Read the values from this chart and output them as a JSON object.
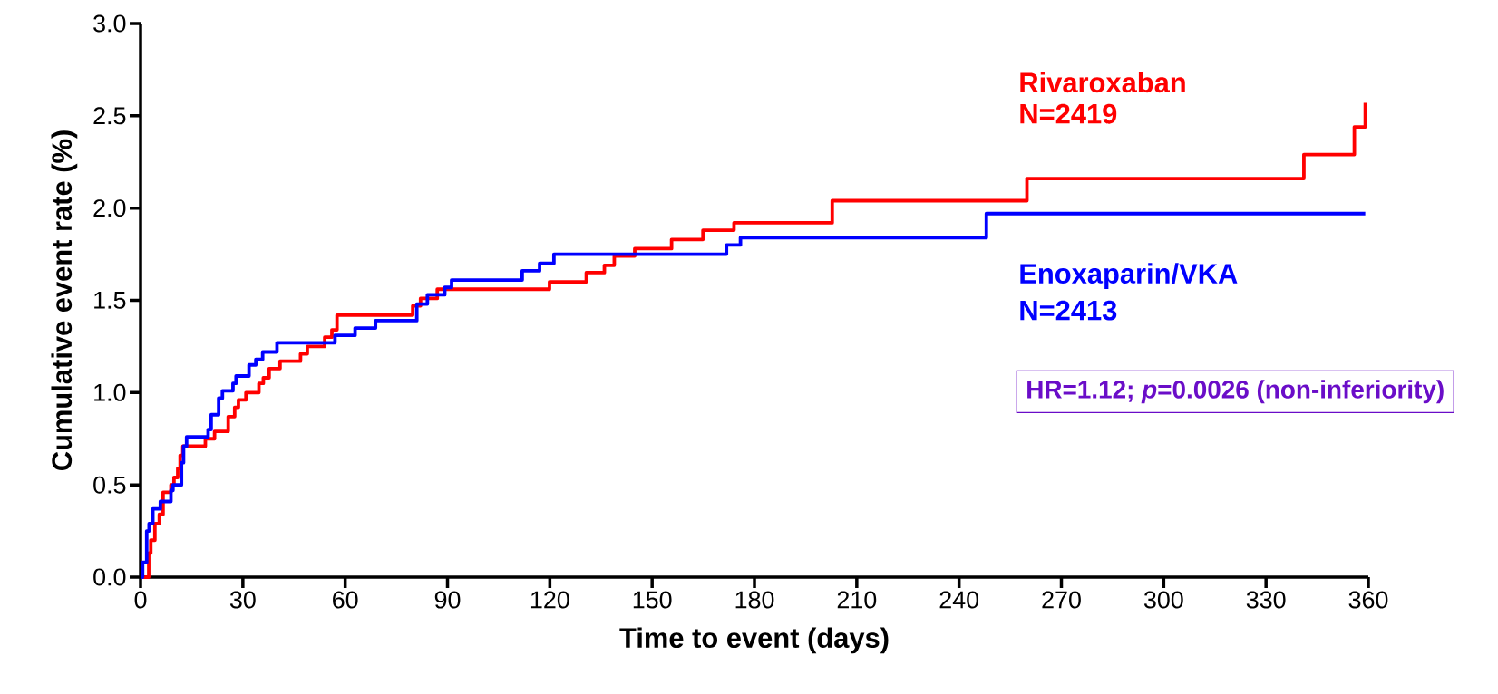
{
  "chart_data": {
    "type": "step",
    "xlabel": "Time to event (days)",
    "ylabel": "Cumulative event rate (%)",
    "xlim": [
      0,
      360
    ],
    "ylim": [
      0,
      3
    ],
    "xticks": [
      0,
      30,
      60,
      90,
      120,
      150,
      180,
      210,
      240,
      270,
      300,
      330,
      360
    ],
    "yticks": [
      {
        "value": 0,
        "label": "0.0"
      },
      0.5,
      {
        "value": 1,
        "label": "1.0"
      },
      1.5,
      {
        "value": 2,
        "label": "2.0"
      },
      2.5,
      {
        "value": 3,
        "label": "3.0"
      }
    ],
    "grid": false,
    "marker": "none",
    "series": [
      {
        "name": "Rivaroxaban",
        "color": "#ff0000",
        "x": [
          0,
          2.4,
          3.0,
          4.2,
          5.5,
          6.6,
          8.9,
          9.8,
          10.9,
          11.6,
          12.4,
          19.0,
          21.7,
          25.7,
          27.6,
          28.7,
          30.9,
          34.7,
          36.0,
          37.7,
          40.9,
          46.9,
          48.9,
          54.0,
          56.1,
          57.6,
          79.8,
          82.1,
          87.0,
          119.9,
          130.7,
          136.0,
          138.9,
          144.9,
          155.7,
          164.9,
          174.0,
          202.8,
          259.9,
          341.1,
          355.9,
          359.1
        ],
        "values": [
          0,
          0.13,
          0.2,
          0.29,
          0.34,
          0.46,
          0.5,
          0.54,
          0.59,
          0.66,
          0.71,
          0.75,
          0.79,
          0.87,
          0.92,
          0.96,
          1.0,
          1.05,
          1.08,
          1.13,
          1.17,
          1.21,
          1.25,
          1.3,
          1.34,
          1.42,
          1.47,
          1.51,
          1.56,
          1.6,
          1.65,
          1.69,
          1.74,
          1.78,
          1.83,
          1.88,
          1.92,
          2.04,
          2.16,
          2.29,
          2.44,
          2.57
        ]
      },
      {
        "name": "Enoxaparin/VKA",
        "color": "#0000ff",
        "x": [
          0,
          0.6,
          1.8,
          2.5,
          3.6,
          5.8,
          8.9,
          9.5,
          12.0,
          12.6,
          13.5,
          19.8,
          20.7,
          22.9,
          24.0,
          27.1,
          28.0,
          31.8,
          33.8,
          35.8,
          40.0,
          57.0,
          62.9,
          68.9,
          81.0,
          84.1,
          89.2,
          91.2,
          111.9,
          117.0,
          121.2,
          171.8,
          175.9,
          248.0,
          359.1
        ],
        "values": [
          0,
          0.08,
          0.25,
          0.29,
          0.37,
          0.41,
          0.47,
          0.5,
          0.62,
          0.71,
          0.76,
          0.8,
          0.88,
          0.97,
          1.01,
          1.05,
          1.09,
          1.15,
          1.18,
          1.22,
          1.27,
          1.31,
          1.35,
          1.39,
          1.48,
          1.53,
          1.57,
          1.61,
          1.66,
          1.7,
          1.75,
          1.8,
          1.84,
          1.97,
          1.97
        ]
      }
    ],
    "annotations": [
      "N=2419",
      "N=2413",
      "HR=1.12; *p*=0.0026 (non-inferiority)"
    ]
  }
}
